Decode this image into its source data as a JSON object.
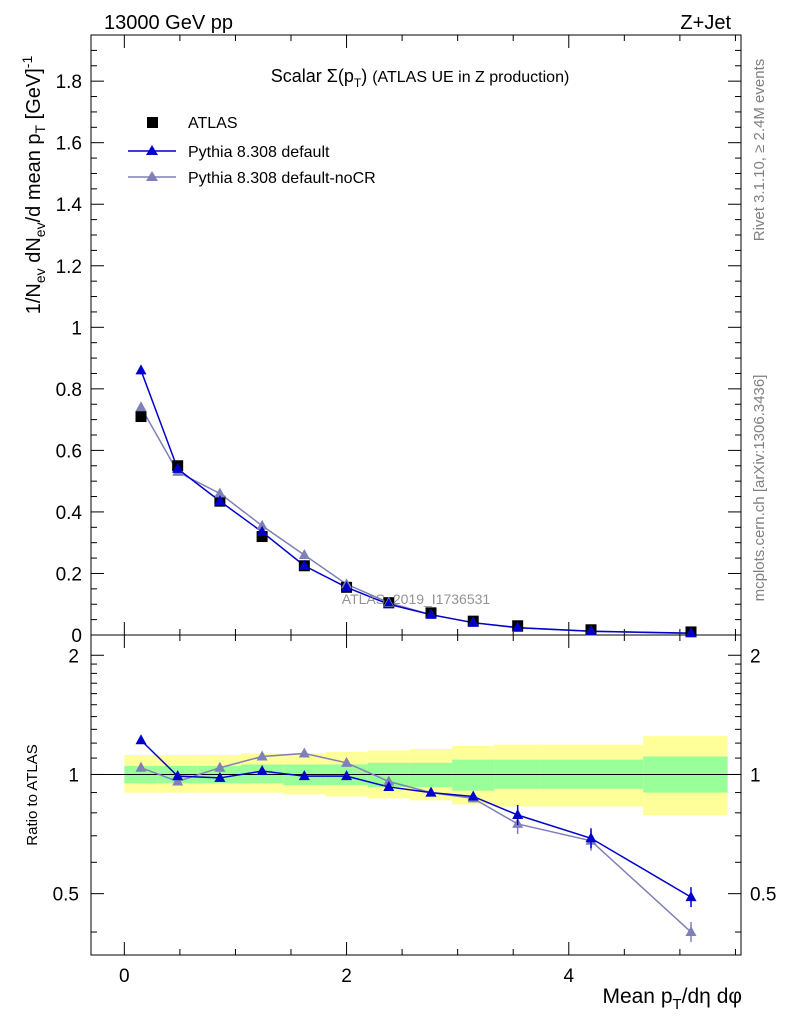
{
  "header": {
    "left": "13000 GeV pp",
    "right": "Z+Jet"
  },
  "side_labels": {
    "top": "Rivet 3.1.10, ≥ 2.4M events",
    "bottom": "mcplots.cern.ch [arXiv:1306.3436]"
  },
  "watermark": "ATLAS_2019_I1736531",
  "colors": {
    "data": "#000000",
    "pythia_default": "#0000cc",
    "pythia_nocr": "#8080b8",
    "band_inner": "#99ff99",
    "band_outer": "#ffff99"
  },
  "chart_data": [
    {
      "type": "scatter",
      "title": "Scalar Σ(p_T) (ATLAS UE in Z production)",
      "xlabel": "",
      "ylabel": "1/N_ev dN_ev/d mean p_T [GeV]^-1",
      "xlim": [
        -0.3,
        5.55
      ],
      "ylim": [
        0,
        1.95
      ],
      "yticks": [
        "0",
        "0.2",
        "0.4",
        "0.6",
        "0.8",
        "1",
        "1.2",
        "1.4",
        "1.6",
        "1.8"
      ],
      "legend": [
        "ATLAS",
        "Pythia 8.308 default",
        "Pythia 8.308 default-noCR"
      ],
      "legend_position": "top-left",
      "x": [
        0.15,
        0.48,
        0.86,
        1.24,
        1.62,
        2.0,
        2.38,
        2.76,
        3.14,
        3.54,
        4.2,
        5.1
      ],
      "series": [
        {
          "name": "ATLAS",
          "values": [
            0.71,
            0.55,
            0.435,
            0.32,
            0.225,
            0.155,
            0.105,
            0.072,
            0.045,
            0.03,
            0.017,
            0.01
          ]
        },
        {
          "name": "Pythia 8.308 default",
          "values": [
            0.86,
            0.54,
            0.435,
            0.335,
            0.225,
            0.155,
            0.1,
            0.066,
            0.04,
            0.024,
            0.012,
            0.006
          ]
        },
        {
          "name": "Pythia 8.308 default-noCR",
          "values": [
            0.74,
            0.53,
            0.46,
            0.355,
            0.26,
            0.165,
            0.105,
            0.066,
            0.04,
            0.023,
            0.012,
            0.005
          ]
        }
      ]
    },
    {
      "type": "line",
      "xlabel": "Mean p_T/dη dφ",
      "ylabel": "Ratio to ATLAS",
      "xlim": [
        -0.3,
        5.55
      ],
      "ylim": [
        0.35,
        2.25
      ],
      "yticks": [
        "0.5",
        "1",
        "2"
      ],
      "xticks": [
        "0",
        "2",
        "4"
      ],
      "bin_edges": [
        0.0,
        0.3,
        0.66,
        1.05,
        1.43,
        1.81,
        2.19,
        2.57,
        2.95,
        3.33,
        3.74,
        4.67,
        5.43
      ],
      "band_inner": [
        [
          0.95,
          1.05
        ],
        [
          0.95,
          1.05
        ],
        [
          0.95,
          1.05
        ],
        [
          0.95,
          1.06
        ],
        [
          0.94,
          1.06
        ],
        [
          0.94,
          1.06
        ],
        [
          0.93,
          1.07
        ],
        [
          0.93,
          1.07
        ],
        [
          0.91,
          1.09
        ],
        [
          0.92,
          1.09
        ],
        [
          0.92,
          1.09
        ],
        [
          0.9,
          1.11
        ]
      ],
      "band_outer": [
        [
          0.9,
          1.12
        ],
        [
          0.9,
          1.12
        ],
        [
          0.9,
          1.12
        ],
        [
          0.9,
          1.13
        ],
        [
          0.89,
          1.13
        ],
        [
          0.88,
          1.14
        ],
        [
          0.87,
          1.15
        ],
        [
          0.86,
          1.16
        ],
        [
          0.84,
          1.18
        ],
        [
          0.83,
          1.19
        ],
        [
          0.83,
          1.19
        ],
        [
          0.79,
          1.25
        ]
      ],
      "x": [
        0.15,
        0.48,
        0.86,
        1.24,
        1.62,
        2.0,
        2.38,
        2.76,
        3.14,
        3.54,
        4.2,
        5.1
      ],
      "series": [
        {
          "name": "Pythia 8.308 default",
          "values": [
            1.22,
            0.99,
            0.98,
            1.02,
            0.99,
            0.99,
            0.93,
            0.9,
            0.88,
            0.79,
            0.69,
            0.49
          ]
        },
        {
          "name": "Pythia 8.308 default-noCR",
          "values": [
            1.04,
            0.96,
            1.04,
            1.11,
            1.13,
            1.07,
            0.96,
            0.9,
            0.87,
            0.75,
            0.68,
            0.4
          ]
        }
      ]
    }
  ]
}
